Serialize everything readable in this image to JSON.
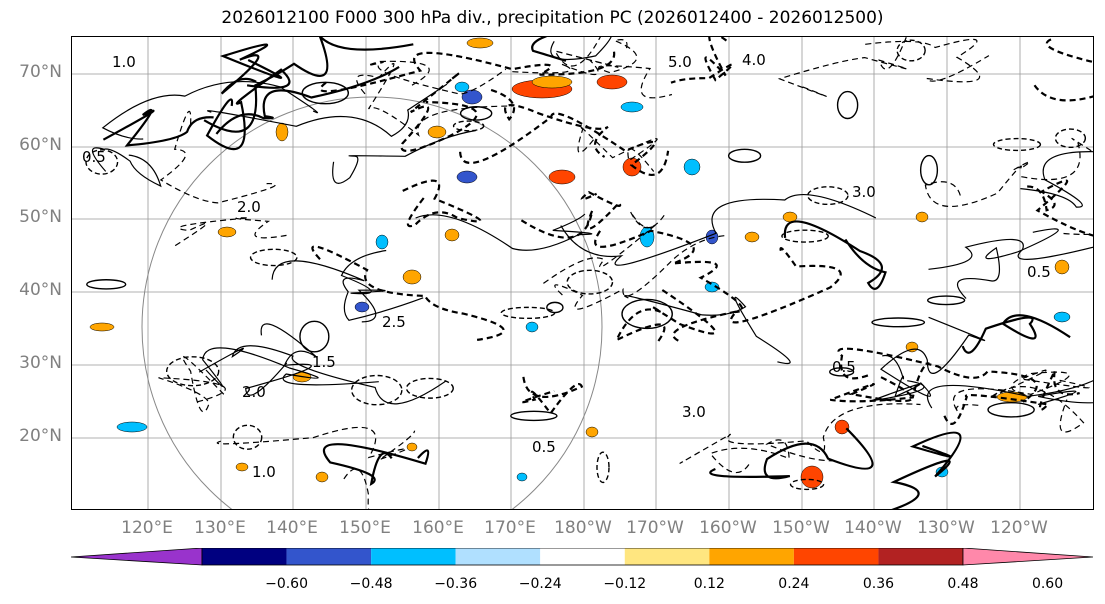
{
  "title": "2026012100 F000 300 hPa div., precipitation PC (2026012400 - 2026012500)",
  "lat_labels": [
    "70°N",
    "60°N",
    "50°N",
    "40°N",
    "30°N",
    "20°N"
  ],
  "lon_labels": [
    "120°E",
    "130°E",
    "140°E",
    "150°E",
    "160°E",
    "170°E",
    "180°W",
    "170°W",
    "160°W",
    "150°W",
    "140°W",
    "130°W",
    "120°W"
  ],
  "contour_labels": [
    "5.0",
    "4.0",
    "1.0",
    "0.5",
    "2.0",
    "3.0",
    "2.5",
    "1.5"
  ],
  "colorbar": {
    "colors": [
      "#9933cc",
      "#000080",
      "#3355cc",
      "#00bfff",
      "#b0e0ff",
      "#ffffff",
      "#ffe680",
      "#ffa500",
      "#ff4500",
      "#b22222",
      "#ff88aa"
    ],
    "tick_labels": [
      "−0.60",
      "−0.48",
      "−0.36",
      "−0.24",
      "−0.12",
      "0.12",
      "0.24",
      "0.36",
      "0.48",
      "0.60"
    ]
  }
}
